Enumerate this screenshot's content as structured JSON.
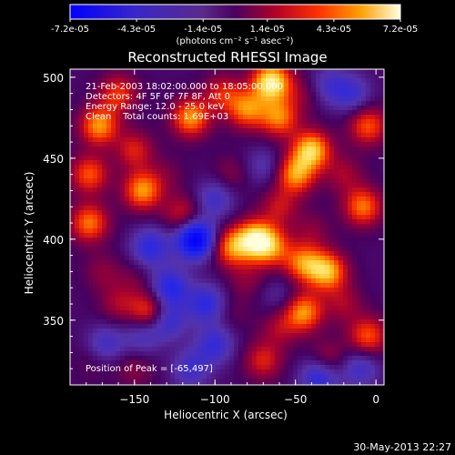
{
  "chart_data": {
    "type": "heatmap",
    "title": "Reconstructed RHESSI Image",
    "xlabel": "Heliocentric X (arcsec)",
    "ylabel": "Heliocentric Y (arcsec)",
    "xlim": [
      -190,
      5
    ],
    "ylim": [
      310,
      505
    ],
    "x_ticks": [
      -150,
      -100,
      -50,
      0
    ],
    "y_ticks": [
      350,
      400,
      450,
      500
    ],
    "colorbar": {
      "min": -7.2e-05,
      "max": 7.2e-05,
      "tick_labels": [
        "-7.2e-05",
        "-4.3e-05",
        "-1.4e-05",
        "1.4e-05",
        "4.3e-05",
        "7.2e-05"
      ],
      "unit_label": "(photons cm⁻² s⁻¹ asec⁻²)"
    },
    "annotations": [
      "21-Feb-2003 18:02:00.000 to 18:05:00.000",
      "Detectors: 4F 5F 6F 7F 8F, Att 0",
      "Energy Range: 12.0 - 25.0 keV",
      "Clean    Total counts: 1.69E+03"
    ],
    "peak": {
      "label": "Position of Peak = [-65,497]",
      "x": -65,
      "y": 497
    },
    "timestamp": "30-May-2013 22:27",
    "colors": {
      "low": "#0000ff",
      "mid_low": "#5030b0",
      "mid": "#500060",
      "mid_high": "#ff3000",
      "high": "#ffffa0"
    },
    "blobs": [
      {
        "x": -172,
        "y": 470,
        "v": 1.0
      },
      {
        "x": -160,
        "y": 490,
        "v": 0.7
      },
      {
        "x": -178,
        "y": 440,
        "v": 0.8
      },
      {
        "x": -178,
        "y": 410,
        "v": 0.9
      },
      {
        "x": -170,
        "y": 380,
        "v": 0.3
      },
      {
        "x": -160,
        "y": 360,
        "v": 0.4
      },
      {
        "x": -168,
        "y": 335,
        "v": -0.6
      },
      {
        "x": -150,
        "y": 455,
        "v": 0.6
      },
      {
        "x": -145,
        "y": 430,
        "v": 1.0
      },
      {
        "x": -130,
        "y": 440,
        "v": 0.2
      },
      {
        "x": -115,
        "y": 475,
        "v": 1.0
      },
      {
        "x": -95,
        "y": 490,
        "v": 0.6
      },
      {
        "x": -80,
        "y": 480,
        "v": 0.9
      },
      {
        "x": -65,
        "y": 497,
        "v": 1.4
      },
      {
        "x": -60,
        "y": 475,
        "v": 0.9
      },
      {
        "x": -45,
        "y": 490,
        "v": 0.3
      },
      {
        "x": -30,
        "y": 495,
        "v": -0.5
      },
      {
        "x": -15,
        "y": 490,
        "v": -0.6
      },
      {
        "x": -40,
        "y": 455,
        "v": 1.2
      },
      {
        "x": -50,
        "y": 440,
        "v": 1.0
      },
      {
        "x": -20,
        "y": 440,
        "v": 0.4
      },
      {
        "x": -5,
        "y": 470,
        "v": 0.8
      },
      {
        "x": -8,
        "y": 420,
        "v": 0.9
      },
      {
        "x": -70,
        "y": 445,
        "v": -0.4
      },
      {
        "x": -60,
        "y": 420,
        "v": 0.5
      },
      {
        "x": -90,
        "y": 440,
        "v": 0.3
      },
      {
        "x": -100,
        "y": 425,
        "v": -0.6
      },
      {
        "x": -120,
        "y": 415,
        "v": 0.6
      },
      {
        "x": -112,
        "y": 400,
        "v": -1.6
      },
      {
        "x": -140,
        "y": 395,
        "v": -0.8
      },
      {
        "x": -128,
        "y": 370,
        "v": -0.9
      },
      {
        "x": -130,
        "y": 350,
        "v": -0.8
      },
      {
        "x": -145,
        "y": 340,
        "v": -0.5
      },
      {
        "x": -140,
        "y": 355,
        "v": 0.9
      },
      {
        "x": -105,
        "y": 360,
        "v": -0.8
      },
      {
        "x": -100,
        "y": 335,
        "v": -0.7
      },
      {
        "x": -115,
        "y": 320,
        "v": -0.6
      },
      {
        "x": -90,
        "y": 395,
        "v": 0.9
      },
      {
        "x": -75,
        "y": 400,
        "v": 1.2
      },
      {
        "x": -65,
        "y": 395,
        "v": 0.8
      },
      {
        "x": -80,
        "y": 375,
        "v": 0.3
      },
      {
        "x": -45,
        "y": 385,
        "v": 0.9
      },
      {
        "x": -30,
        "y": 380,
        "v": 1.1
      },
      {
        "x": -40,
        "y": 405,
        "v": 0.3
      },
      {
        "x": -20,
        "y": 360,
        "v": 0.4
      },
      {
        "x": -5,
        "y": 340,
        "v": 0.8
      },
      {
        "x": -10,
        "y": 320,
        "v": -0.6
      },
      {
        "x": -30,
        "y": 325,
        "v": 0.5
      },
      {
        "x": -45,
        "y": 355,
        "v": 1.0
      },
      {
        "x": -60,
        "y": 345,
        "v": 0.4
      },
      {
        "x": -70,
        "y": 325,
        "v": 0.6
      },
      {
        "x": -60,
        "y": 365,
        "v": -0.3
      },
      {
        "x": -90,
        "y": 355,
        "v": 0.2
      },
      {
        "x": -150,
        "y": 375,
        "v": 0.2
      },
      {
        "x": -175,
        "y": 325,
        "v": 0.2
      },
      {
        "x": -150,
        "y": 320,
        "v": 0.3
      },
      {
        "x": -35,
        "y": 315,
        "v": -0.9
      }
    ]
  }
}
